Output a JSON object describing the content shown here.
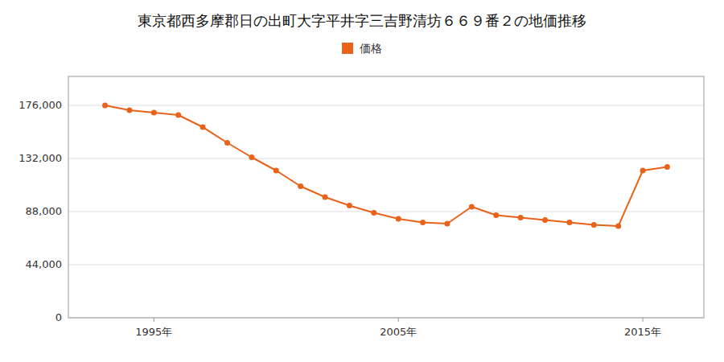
{
  "chart_data": {
    "type": "line",
    "title": "東京都西多摩郡日の出町大字平井字三吉野清坊６６９番２の地価推移",
    "x": [
      1993,
      1994,
      1995,
      1996,
      1997,
      1998,
      1999,
      2000,
      2001,
      2002,
      2003,
      2004,
      2005,
      2006,
      2007,
      2008,
      2009,
      2010,
      2011,
      2012,
      2013,
      2014,
      2015,
      2016
    ],
    "series": [
      {
        "name": "価格",
        "color": "#e8621a",
        "values": [
          176000,
          172000,
          170000,
          168000,
          158000,
          145000,
          133000,
          122000,
          109000,
          100000,
          93000,
          87000,
          82000,
          79000,
          78000,
          92000,
          85000,
          83000,
          81000,
          79000,
          77000,
          76000,
          122000,
          125000
        ]
      }
    ],
    "xlim": [
      1991.5,
      2017.5
    ],
    "xticks": [
      {
        "value": 1995,
        "label": "1995年"
      },
      {
        "value": 2005,
        "label": "2005年"
      },
      {
        "value": 2015,
        "label": "2015年"
      }
    ],
    "ylim": [
      0,
      200000
    ],
    "yticks": [
      0,
      {
        "value": 44000,
        "label": "44,000"
      },
      {
        "value": 88000,
        "label": "88,000"
      },
      {
        "value": 132000,
        "label": "132,000"
      },
      {
        "value": 176000,
        "label": "176,000"
      }
    ],
    "grid": true,
    "legend": "top",
    "marker": "circle"
  }
}
